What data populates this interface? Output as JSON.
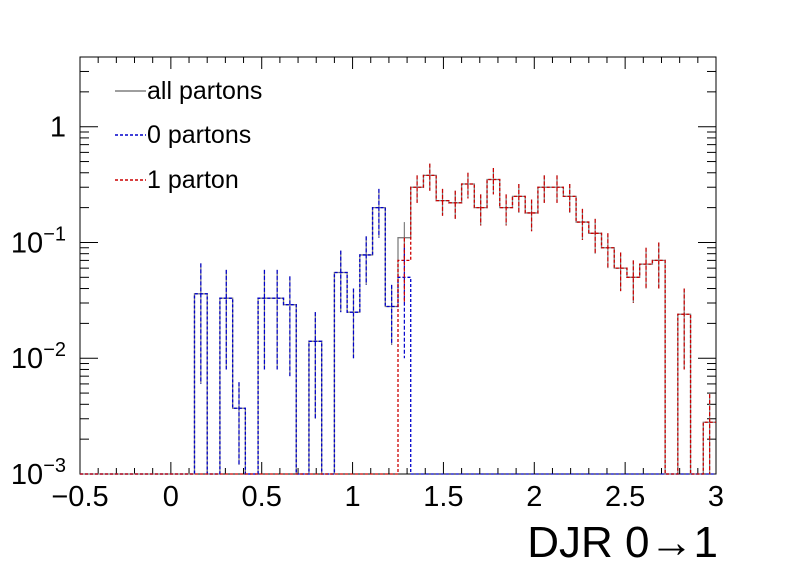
{
  "chart_data": {
    "type": "line",
    "xlabel": "DJR 0→1",
    "yscale": "log",
    "grid": false,
    "xlim": [
      -0.5,
      3.0
    ],
    "ylim": [
      0.001,
      4.0
    ],
    "x_ticks": [
      -0.5,
      0,
      0.5,
      1,
      1.5,
      2,
      2.5,
      3
    ],
    "x_tick_labels": [
      "−0.5",
      "0",
      "0.5",
      "1",
      "1.5",
      "2",
      "2.5",
      "3"
    ],
    "y_ticks": [
      0.001,
      0.01,
      0.1,
      1
    ],
    "y_tick_labels": [
      {
        "base": "10",
        "exp": "−3"
      },
      {
        "base": "10",
        "exp": "−2"
      },
      {
        "base": "10",
        "exp": "−1"
      },
      {
        "base": "1",
        "exp": ""
      }
    ],
    "bin_edges": [
      -0.5,
      -0.43,
      -0.36,
      -0.29,
      -0.22,
      -0.15,
      -0.08,
      -0.01,
      0.06,
      0.13,
      0.2,
      0.27,
      0.34,
      0.41,
      0.48,
      0.55,
      0.62,
      0.69,
      0.76,
      0.83,
      0.9,
      0.97,
      1.04,
      1.11,
      1.18,
      1.25,
      1.32,
      1.39,
      1.46,
      1.53,
      1.6,
      1.67,
      1.74,
      1.81,
      1.88,
      1.95,
      2.02,
      2.09,
      2.16,
      2.23,
      2.3,
      2.37,
      2.44,
      2.51,
      2.58,
      2.65,
      2.72,
      2.79,
      2.86,
      2.93,
      3.0
    ],
    "legend": {
      "position": "top-left",
      "entries": [
        {
          "label": "all partons",
          "color": "#7f7f7f",
          "style": "solid"
        },
        {
          "label": "0 partons",
          "color": "#0000cc",
          "style": "dotted"
        },
        {
          "label": "1 parton",
          "color": "#cc0000",
          "style": "dotted"
        }
      ]
    },
    "series": [
      {
        "name": "all partons",
        "color": "#7f7f7f",
        "style": "solid",
        "values": [
          0,
          0,
          0,
          0,
          0,
          0,
          0,
          0,
          0,
          0.036,
          0,
          0.033,
          0.0037,
          0,
          0.033,
          0.033,
          0.029,
          0,
          0.014,
          0,
          0.055,
          0.025,
          0.078,
          0.2,
          0.028,
          0.11,
          0.3,
          0.38,
          0.23,
          0.22,
          0.32,
          0.2,
          0.35,
          0.2,
          0.25,
          0.18,
          0.3,
          0.3,
          0.25,
          0.15,
          0.12,
          0.09,
          0.06,
          0.05,
          0.065,
          0.07,
          0,
          0.024,
          0,
          0.0028
        ],
        "errors": [
          0,
          0,
          0,
          0,
          0,
          0,
          0,
          0,
          0,
          0.03,
          0,
          0.025,
          0.0025,
          0,
          0.025,
          0.025,
          0.022,
          0,
          0.011,
          0,
          0.03,
          0.015,
          0.035,
          0.09,
          0.015,
          0.04,
          0.08,
          0.1,
          0.06,
          0.06,
          0.08,
          0.06,
          0.09,
          0.06,
          0.07,
          0.055,
          0.08,
          0.08,
          0.07,
          0.045,
          0.04,
          0.03,
          0.022,
          0.02,
          0.025,
          0.03,
          0,
          0.016,
          0,
          0.0021
        ]
      },
      {
        "name": "0 partons",
        "color": "#0000cc",
        "style": "dotted",
        "values": [
          0,
          0,
          0,
          0,
          0,
          0,
          0,
          0,
          0,
          0.036,
          0,
          0.033,
          0.0037,
          0,
          0.033,
          0.033,
          0.029,
          0,
          0.014,
          0,
          0.055,
          0.025,
          0.078,
          0.2,
          0.028,
          0.05,
          0,
          0,
          0,
          0,
          0,
          0,
          0,
          0,
          0,
          0,
          0,
          0,
          0,
          0,
          0,
          0,
          0,
          0,
          0,
          0,
          0,
          0,
          0,
          0
        ]
      },
      {
        "name": "1 parton",
        "color": "#cc0000",
        "style": "dotted",
        "values": [
          0,
          0,
          0,
          0,
          0,
          0,
          0,
          0,
          0,
          0,
          0,
          0,
          0,
          0,
          0,
          0,
          0,
          0,
          0,
          0,
          0,
          0,
          0,
          0,
          0,
          0.07,
          0.3,
          0.38,
          0.23,
          0.22,
          0.32,
          0.2,
          0.35,
          0.2,
          0.25,
          0.18,
          0.3,
          0.3,
          0.25,
          0.15,
          0.12,
          0.09,
          0.06,
          0.05,
          0.065,
          0.07,
          0,
          0.024,
          0,
          0.0028
        ]
      }
    ]
  }
}
